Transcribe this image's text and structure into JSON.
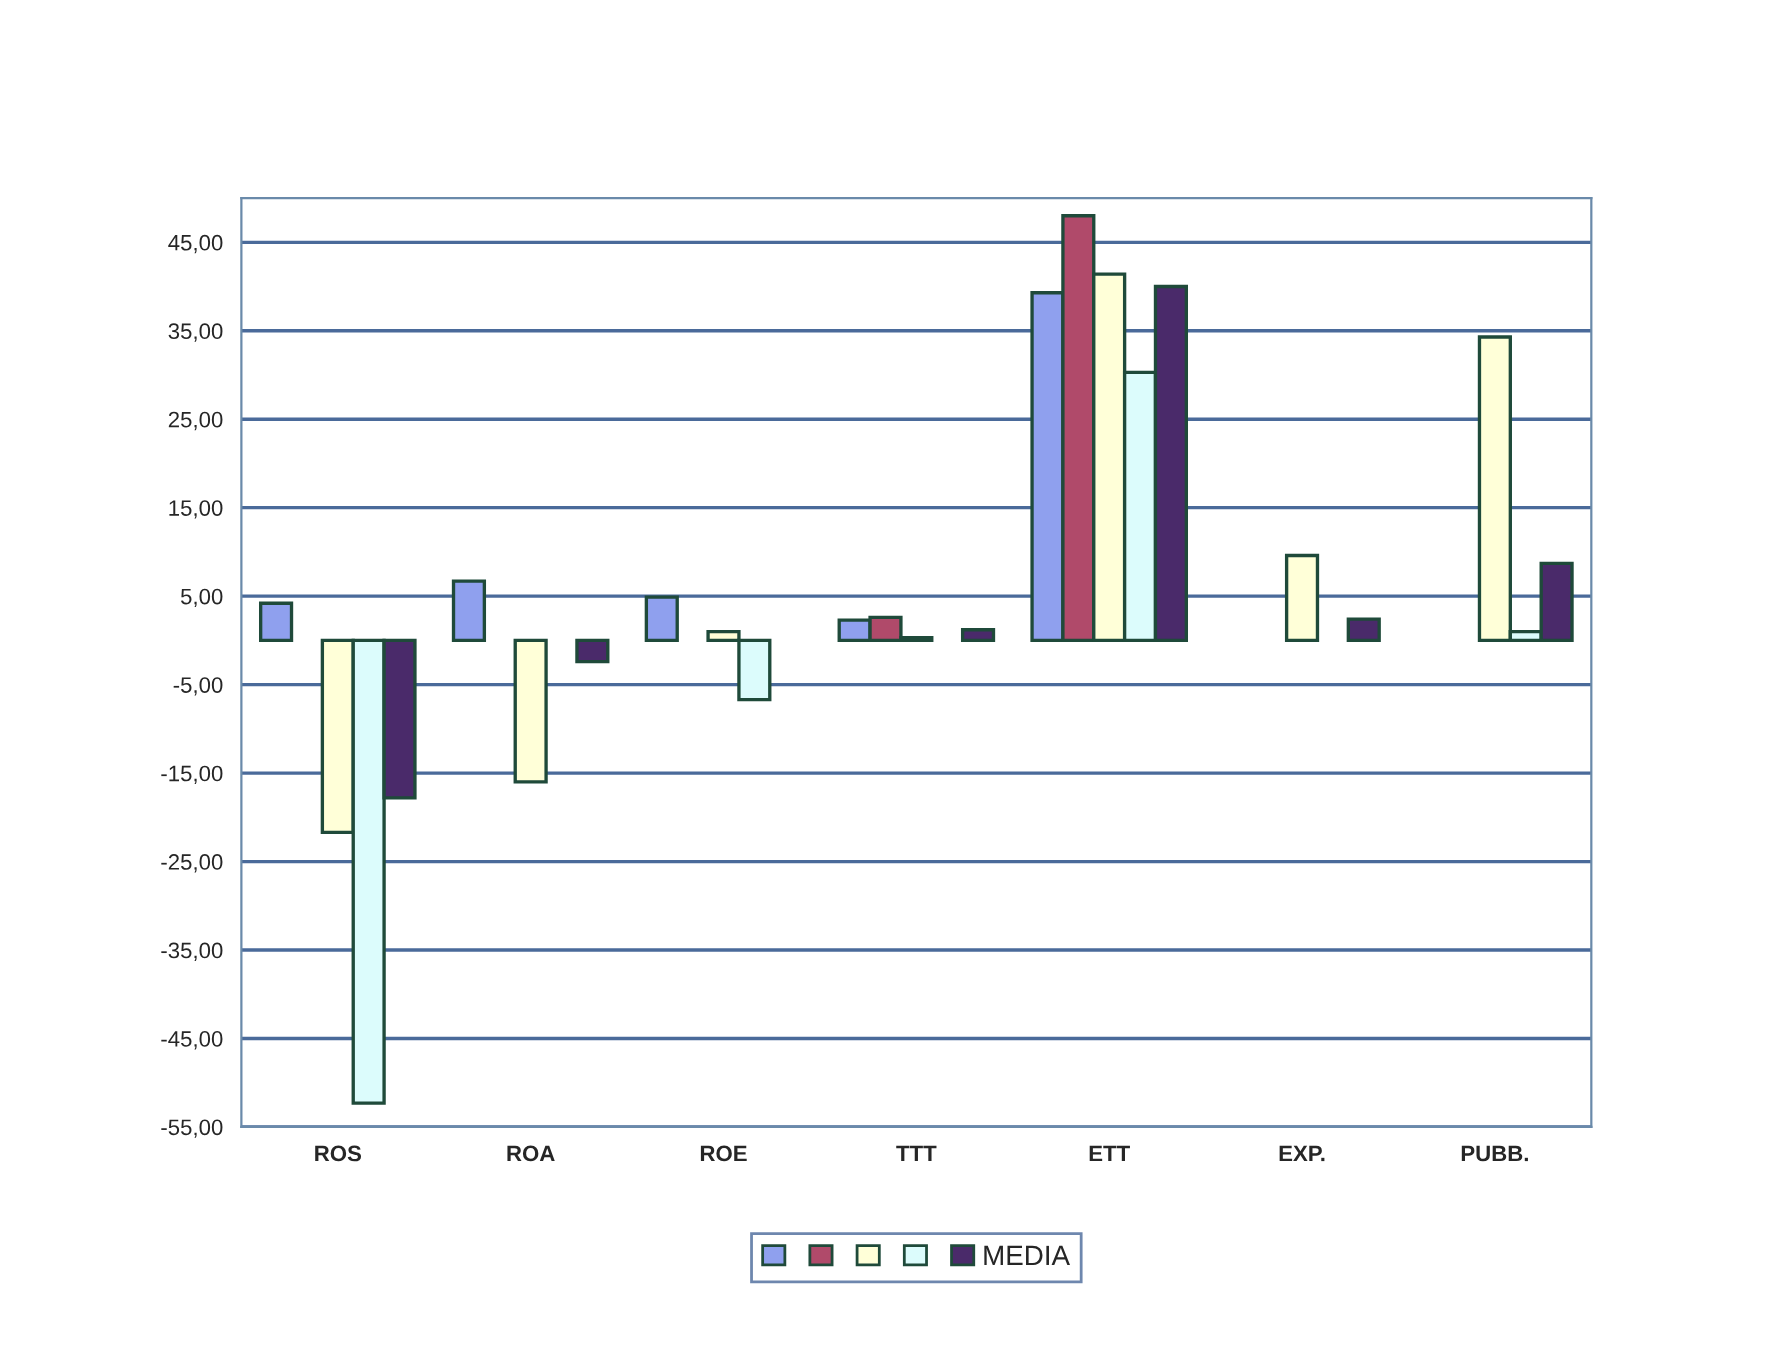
{
  "chart_data": {
    "type": "bar",
    "categories": [
      "ROS",
      "ROA",
      "ROE",
      "TTT",
      "ETT",
      "EXP.",
      "PUBB."
    ],
    "series": [
      {
        "color": "#8fa0ee",
        "values": [
          4.2,
          6.7,
          4.9,
          2.3,
          39.3,
          null,
          null
        ]
      },
      {
        "color": "#b04a6a",
        "values": [
          null,
          null,
          null,
          2.6,
          48,
          null,
          null
        ]
      },
      {
        "color": "#ffffd8",
        "values": [
          -21.7,
          -16,
          1,
          0.3,
          41.4,
          9.6,
          34.3
        ]
      },
      {
        "color": "#dcfcfc",
        "values": [
          -52.3,
          null,
          -6.7,
          null,
          30.3,
          null,
          1
        ]
      },
      {
        "name": "MEDIA",
        "color": "#4a2a6a",
        "values": [
          -17.8,
          -2.4,
          null,
          1.2,
          40,
          2.4,
          8.7
        ]
      }
    ],
    "ylim": [
      -55,
      50
    ],
    "yticks": [
      {
        "value": 45,
        "label": "45,00"
      },
      {
        "value": 35,
        "label": "35,00"
      },
      {
        "value": 25,
        "label": "25,00"
      },
      {
        "value": 15,
        "label": "15,00"
      },
      {
        "value": 5,
        "label": "5,00"
      },
      {
        "value": -5,
        "label": "-5,00"
      },
      {
        "value": -15,
        "label": "-15,00"
      },
      {
        "value": -25,
        "label": "-25,00"
      },
      {
        "value": -35,
        "label": "-35,00"
      },
      {
        "value": -45,
        "label": "-45,00"
      },
      {
        "value": -55,
        "label": "-55,00"
      }
    ],
    "grid": "y",
    "legend": "bottom"
  }
}
